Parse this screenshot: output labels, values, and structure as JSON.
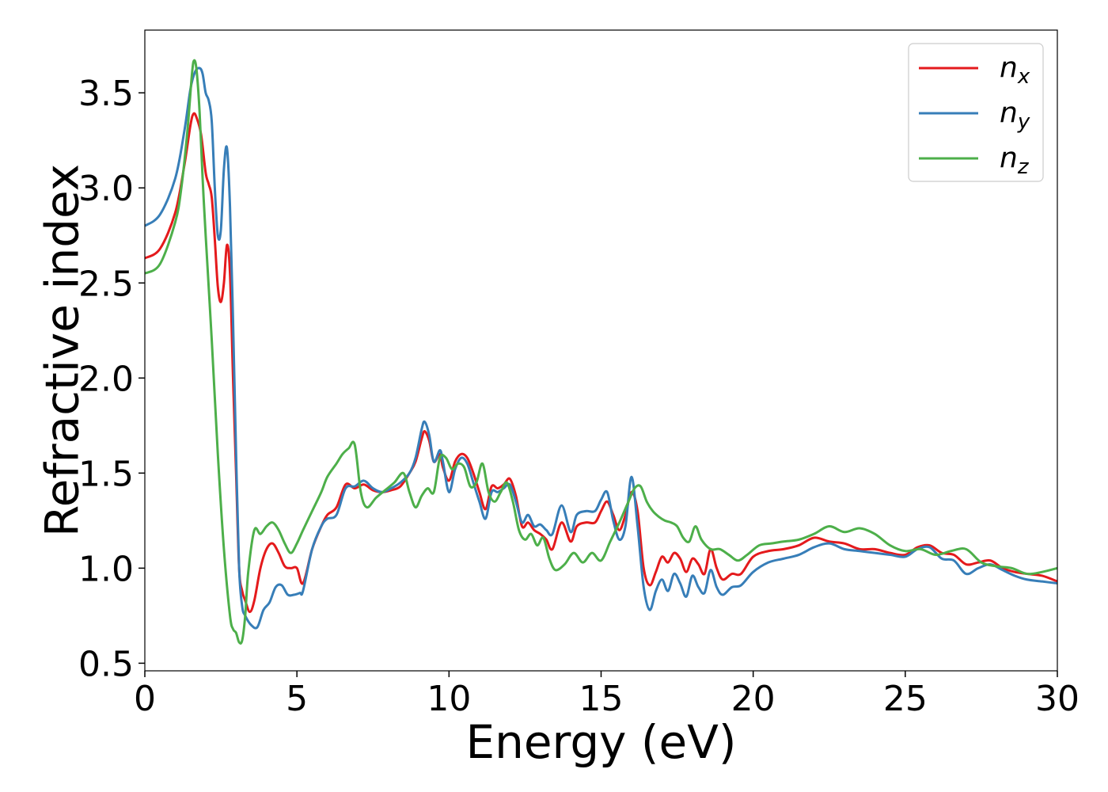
{
  "chart_data": {
    "type": "line",
    "xlabel": "Energy (eV)",
    "ylabel": "Refractive index",
    "xlim": [
      0,
      30
    ],
    "ylim": [
      0.46,
      3.83
    ],
    "xticks": [
      0,
      5,
      10,
      15,
      20,
      25,
      30
    ],
    "xtick_labels": [
      "0",
      "5",
      "10",
      "15",
      "20",
      "25",
      "30"
    ],
    "yticks": [
      0.5,
      1.0,
      1.5,
      2.0,
      2.5,
      3.0,
      3.5
    ],
    "ytick_labels": [
      "0.5",
      "1.0",
      "1.5",
      "2.0",
      "2.5",
      "3.0",
      "3.5"
    ],
    "grid": false,
    "legend_position": "top-right",
    "series": [
      {
        "name": "n_x",
        "label_base": "n",
        "label_sub": "x",
        "color": "#e41a1c",
        "x": [
          0,
          0.5,
          1.0,
          1.3,
          1.5,
          1.6,
          1.7,
          1.85,
          2.0,
          2.1,
          2.2,
          2.3,
          2.4,
          2.5,
          2.6,
          2.7,
          2.8,
          2.9,
          3.0,
          3.1,
          3.2,
          3.3,
          3.45,
          3.6,
          3.8,
          4.0,
          4.2,
          4.4,
          4.6,
          4.8,
          5.0,
          5.2,
          5.5,
          5.8,
          6.0,
          6.3,
          6.6,
          6.9,
          7.2,
          7.5,
          7.8,
          8.1,
          8.4,
          8.7,
          8.9,
          9.1,
          9.2,
          9.35,
          9.5,
          9.7,
          9.8,
          10.0,
          10.2,
          10.4,
          10.6,
          10.8,
          11.0,
          11.2,
          11.4,
          11.6,
          11.8,
          12.0,
          12.2,
          12.4,
          12.6,
          12.8,
          13.0,
          13.2,
          13.4,
          13.7,
          14.0,
          14.2,
          14.5,
          14.8,
          15.0,
          15.2,
          15.4,
          15.6,
          15.8,
          16.0,
          16.2,
          16.4,
          16.6,
          16.8,
          17.0,
          17.2,
          17.4,
          17.6,
          17.8,
          18.0,
          18.2,
          18.4,
          18.6,
          18.8,
          19.0,
          19.3,
          19.6,
          20.0,
          20.5,
          21.0,
          21.5,
          22.0,
          22.5,
          23.0,
          23.5,
          24.0,
          24.5,
          25.0,
          25.4,
          25.8,
          26.2,
          26.6,
          27.0,
          27.4,
          27.8,
          28.2,
          28.6,
          29.0,
          29.5,
          30.0
        ],
        "values": [
          2.63,
          2.68,
          2.87,
          3.12,
          3.33,
          3.39,
          3.37,
          3.28,
          3.08,
          3.02,
          2.95,
          2.73,
          2.48,
          2.4,
          2.5,
          2.7,
          2.55,
          2.0,
          1.5,
          1.0,
          0.88,
          0.83,
          0.77,
          0.83,
          1.0,
          1.1,
          1.13,
          1.08,
          1.01,
          1.0,
          1.0,
          0.92,
          1.1,
          1.22,
          1.28,
          1.32,
          1.44,
          1.42,
          1.44,
          1.41,
          1.4,
          1.41,
          1.43,
          1.5,
          1.56,
          1.68,
          1.72,
          1.67,
          1.56,
          1.6,
          1.53,
          1.46,
          1.56,
          1.6,
          1.58,
          1.5,
          1.4,
          1.31,
          1.43,
          1.42,
          1.44,
          1.47,
          1.38,
          1.22,
          1.24,
          1.2,
          1.18,
          1.15,
          1.1,
          1.24,
          1.14,
          1.22,
          1.24,
          1.24,
          1.3,
          1.35,
          1.28,
          1.2,
          1.28,
          1.4,
          1.3,
          1.0,
          0.91,
          0.98,
          1.06,
          1.03,
          1.08,
          1.05,
          0.98,
          1.05,
          1.02,
          0.97,
          1.1,
          1.0,
          0.94,
          0.97,
          0.97,
          1.06,
          1.09,
          1.1,
          1.12,
          1.16,
          1.14,
          1.13,
          1.1,
          1.1,
          1.08,
          1.07,
          1.11,
          1.12,
          1.08,
          1.07,
          1.02,
          1.03,
          1.04,
          1.0,
          0.98,
          0.97,
          0.96,
          0.93
        ]
      },
      {
        "name": "n_y",
        "label_base": "n",
        "label_sub": "y",
        "color": "#377eb8",
        "x": [
          0,
          0.5,
          1.0,
          1.3,
          1.5,
          1.65,
          1.8,
          1.9,
          2.0,
          2.1,
          2.2,
          2.3,
          2.4,
          2.5,
          2.6,
          2.7,
          2.8,
          2.9,
          3.0,
          3.1,
          3.2,
          3.3,
          3.5,
          3.7,
          3.9,
          4.1,
          4.3,
          4.5,
          4.7,
          4.9,
          5.1,
          5.2,
          5.5,
          5.8,
          6.0,
          6.3,
          6.6,
          6.9,
          7.2,
          7.5,
          7.8,
          8.1,
          8.4,
          8.7,
          8.9,
          9.1,
          9.2,
          9.35,
          9.5,
          9.7,
          9.8,
          10.0,
          10.2,
          10.4,
          10.6,
          10.8,
          11.0,
          11.2,
          11.4,
          11.6,
          11.8,
          12.0,
          12.2,
          12.4,
          12.6,
          12.8,
          13.0,
          13.2,
          13.4,
          13.7,
          14.0,
          14.2,
          14.5,
          14.8,
          15.0,
          15.2,
          15.4,
          15.6,
          15.8,
          16.0,
          16.2,
          16.4,
          16.6,
          16.8,
          17.0,
          17.2,
          17.4,
          17.6,
          17.8,
          18.0,
          18.2,
          18.4,
          18.6,
          18.8,
          19.0,
          19.3,
          19.6,
          20.0,
          20.5,
          21.0,
          21.5,
          22.0,
          22.5,
          23.0,
          23.5,
          24.0,
          24.5,
          25.0,
          25.4,
          25.8,
          26.2,
          26.6,
          27.0,
          27.4,
          27.8,
          28.2,
          28.6,
          29.0,
          29.5,
          30.0
        ],
        "values": [
          2.8,
          2.86,
          3.05,
          3.3,
          3.52,
          3.61,
          3.63,
          3.6,
          3.5,
          3.46,
          3.35,
          3.0,
          2.75,
          2.78,
          3.1,
          3.21,
          2.9,
          2.3,
          1.6,
          1.0,
          0.8,
          0.75,
          0.7,
          0.69,
          0.78,
          0.82,
          0.9,
          0.91,
          0.86,
          0.86,
          0.87,
          0.88,
          1.1,
          1.22,
          1.26,
          1.28,
          1.42,
          1.43,
          1.46,
          1.42,
          1.4,
          1.42,
          1.45,
          1.5,
          1.58,
          1.73,
          1.77,
          1.7,
          1.56,
          1.62,
          1.56,
          1.4,
          1.52,
          1.58,
          1.55,
          1.45,
          1.35,
          1.26,
          1.4,
          1.4,
          1.42,
          1.44,
          1.35,
          1.24,
          1.28,
          1.22,
          1.23,
          1.2,
          1.18,
          1.33,
          1.19,
          1.28,
          1.3,
          1.3,
          1.36,
          1.4,
          1.25,
          1.15,
          1.22,
          1.48,
          1.22,
          0.9,
          0.78,
          0.88,
          0.94,
          0.88,
          0.97,
          0.92,
          0.85,
          0.96,
          0.9,
          0.87,
          0.99,
          0.9,
          0.86,
          0.9,
          0.91,
          0.98,
          1.03,
          1.05,
          1.07,
          1.11,
          1.13,
          1.1,
          1.09,
          1.08,
          1.07,
          1.06,
          1.1,
          1.11,
          1.05,
          1.04,
          0.97,
          1.0,
          1.02,
          0.99,
          0.96,
          0.94,
          0.93,
          0.92
        ]
      },
      {
        "name": "n_z",
        "label_base": "n",
        "label_sub": "z",
        "color": "#4daf4a",
        "x": [
          0,
          0.5,
          1.0,
          1.2,
          1.4,
          1.55,
          1.62,
          1.7,
          1.8,
          1.9,
          2.0,
          2.2,
          2.4,
          2.6,
          2.8,
          2.9,
          3.0,
          3.1,
          3.2,
          3.3,
          3.4,
          3.6,
          3.8,
          4.0,
          4.2,
          4.4,
          4.6,
          4.8,
          5.0,
          5.2,
          5.5,
          5.8,
          6.0,
          6.3,
          6.5,
          6.7,
          6.9,
          7.1,
          7.3,
          7.6,
          7.9,
          8.2,
          8.5,
          8.7,
          8.9,
          9.1,
          9.3,
          9.5,
          9.7,
          9.9,
          10.1,
          10.3,
          10.5,
          10.7,
          10.9,
          11.1,
          11.3,
          11.5,
          11.7,
          11.9,
          12.1,
          12.3,
          12.5,
          12.7,
          12.9,
          13.1,
          13.3,
          13.5,
          13.8,
          14.1,
          14.4,
          14.7,
          15.0,
          15.3,
          15.6,
          15.9,
          16.1,
          16.3,
          16.5,
          16.7,
          16.9,
          17.1,
          17.3,
          17.5,
          17.7,
          17.9,
          18.1,
          18.3,
          18.6,
          18.9,
          19.2,
          19.5,
          19.8,
          20.2,
          20.6,
          21.0,
          21.5,
          22.0,
          22.5,
          23.0,
          23.5,
          24.0,
          24.5,
          25.0,
          25.5,
          26.0,
          26.5,
          27.0,
          27.5,
          28.0,
          28.5,
          29.0,
          29.5,
          30.0
        ],
        "values": [
          2.55,
          2.6,
          2.82,
          3.0,
          3.3,
          3.6,
          3.67,
          3.62,
          3.4,
          3.05,
          2.75,
          2.2,
          1.6,
          1.1,
          0.75,
          0.68,
          0.66,
          0.61,
          0.62,
          0.75,
          0.98,
          1.2,
          1.18,
          1.22,
          1.24,
          1.2,
          1.13,
          1.08,
          1.13,
          1.2,
          1.3,
          1.4,
          1.48,
          1.55,
          1.6,
          1.63,
          1.65,
          1.4,
          1.32,
          1.37,
          1.41,
          1.45,
          1.5,
          1.4,
          1.32,
          1.38,
          1.42,
          1.4,
          1.58,
          1.58,
          1.52,
          1.55,
          1.53,
          1.43,
          1.45,
          1.55,
          1.4,
          1.35,
          1.4,
          1.45,
          1.35,
          1.2,
          1.15,
          1.18,
          1.12,
          1.16,
          1.05,
          0.99,
          1.02,
          1.08,
          1.03,
          1.08,
          1.04,
          1.14,
          1.24,
          1.35,
          1.42,
          1.43,
          1.35,
          1.3,
          1.27,
          1.25,
          1.24,
          1.22,
          1.16,
          1.14,
          1.22,
          1.15,
          1.1,
          1.1,
          1.07,
          1.04,
          1.07,
          1.12,
          1.13,
          1.14,
          1.15,
          1.18,
          1.22,
          1.19,
          1.21,
          1.18,
          1.12,
          1.09,
          1.1,
          1.07,
          1.09,
          1.1,
          1.03,
          1.01,
          1.0,
          0.97,
          0.98,
          1.0
        ]
      }
    ]
  }
}
